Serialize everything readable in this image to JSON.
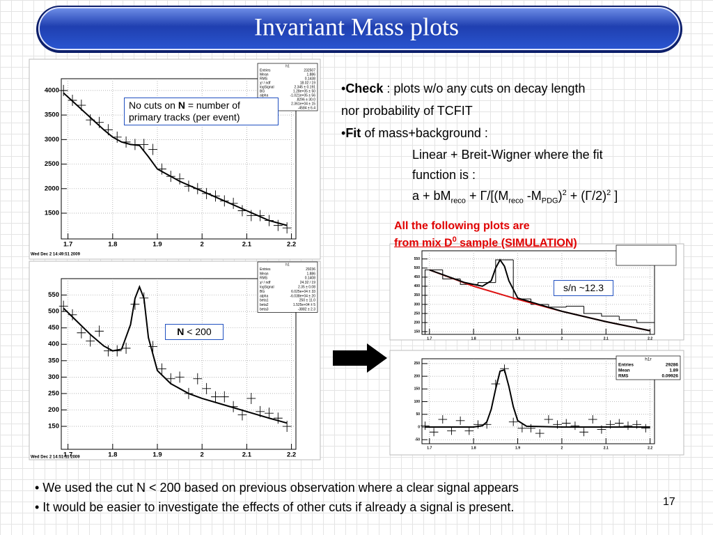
{
  "title": "Invariant Mass plots",
  "check": [
    "•",
    "Check",
    " : plots w/o any cuts on decay length"
  ],
  "check_cont": "nor probability of TCFIT",
  "fit": [
    "•",
    "Fit",
    " of mass+background :"
  ],
  "fit_desc": [
    "Linear + Breit-Wigner where the fit",
    "function is :"
  ],
  "formula": [
    "a + bM",
    "reco",
    " + Γ/[(M",
    "reco",
    " -M",
    "PDG",
    ")",
    "2",
    " + (Γ/2)",
    "2",
    " ]"
  ],
  "sample_note": [
    "All the following plots are",
    "from mix D",
    "0",
    " sample (SIMULATION)"
  ],
  "bottom": [
    "• We used the cut N < 200 based on previous observation where a clear signal appears",
    "• It would be easier to investigate the effects of other cuts if already a signal is present."
  ],
  "page_number": "17",
  "chart_data": [
    {
      "type": "scatter",
      "annotation": [
        "No cuts on ",
        "N",
        " = number of primary tracks (per event)"
      ],
      "footer": "Wed Dec  2 14:49:51 2009",
      "xlim": [
        1.685,
        2.21
      ],
      "xticks": [
        1.7,
        1.8,
        1.9,
        2,
        2.1,
        2.2
      ],
      "ylim": [
        975,
        4240
      ],
      "yticks": [
        1500,
        2000,
        2500,
        3000,
        3500,
        4000
      ],
      "grid": true,
      "stats": {
        "title": "h1",
        "rows": [
          [
            "Entries",
            "232507"
          ],
          [
            "Mean",
            "1.886"
          ],
          [
            "RMS",
            "0.1438"
          ],
          [
            "χ² / ndf",
            "18.02 / 19"
          ],
          [
            "logSignal",
            "2.345 ± 0.191"
          ],
          [
            "BG",
            "1.28e+05 ± 50"
          ],
          [
            "alpha",
            "-1.021e+05 ± 56"
          ],
          [
            "",
            ".8296 ± 30.0"
          ],
          [
            "",
            "2.361e+04 ± 15"
          ],
          [
            "",
            "-4584 ± 6.4"
          ]
        ]
      },
      "series": [
        {
          "style": "cross",
          "color": "#000000",
          "x": [
            1.69,
            1.71,
            1.73,
            1.75,
            1.77,
            1.79,
            1.81,
            1.83,
            1.85,
            1.87,
            1.89,
            1.91,
            1.93,
            1.95,
            1.97,
            1.99,
            2.01,
            2.03,
            2.05,
            2.07,
            2.09,
            2.11,
            2.13,
            2.15,
            2.17,
            2.19
          ],
          "values": [
            4000,
            3800,
            3700,
            3400,
            3350,
            3200,
            3050,
            2950,
            2900,
            2900,
            2800,
            2400,
            2250,
            2200,
            2050,
            2000,
            1900,
            1850,
            1750,
            1700,
            1550,
            1450,
            1450,
            1350,
            1250,
            1200
          ]
        },
        {
          "style": "line",
          "color": "#000000",
          "x": [
            1.69,
            1.72,
            1.75,
            1.78,
            1.8,
            1.82,
            1.84,
            1.86,
            1.88,
            1.9,
            1.95,
            2.0,
            2.05,
            2.1,
            2.15,
            2.19
          ],
          "values": [
            3950,
            3700,
            3450,
            3200,
            3050,
            2950,
            2900,
            2880,
            2650,
            2400,
            2150,
            1950,
            1750,
            1550,
            1350,
            1250
          ]
        }
      ]
    },
    {
      "type": "scatter",
      "annotation": [
        "N",
        " < 200"
      ],
      "footer": "Wed Dec  2 14:51:11 2009",
      "xlim": [
        1.685,
        2.21
      ],
      "xticks": [
        1.7,
        1.8,
        1.9,
        2,
        2.1,
        2.2
      ],
      "ylim": [
        80,
        600
      ],
      "yticks": [
        150,
        200,
        250,
        300,
        350,
        400,
        450,
        500,
        550
      ],
      "grid": true,
      "stats": {
        "title": "h1",
        "rows": [
          [
            "Entries",
            "29236"
          ],
          [
            "Mean",
            "1.886"
          ],
          [
            "RMS",
            "0.1408"
          ],
          [
            "χ² / ndf",
            "24.32 / 19"
          ],
          [
            "logSignal",
            "2.35 ± 0.08"
          ],
          [
            "BG",
            "6.025e+04 ± 33"
          ],
          [
            "alpha",
            "-6.038e+04 ± 20"
          ],
          [
            "beta1",
            "250 ± 11.0"
          ],
          [
            "beta2",
            "1.525e+04 ± 5"
          ],
          [
            "beta3",
            "-3882 ± 2.3"
          ]
        ]
      },
      "series": [
        {
          "style": "cross",
          "color": "#000000",
          "x": [
            1.69,
            1.71,
            1.73,
            1.75,
            1.77,
            1.79,
            1.81,
            1.83,
            1.85,
            1.87,
            1.89,
            1.91,
            1.93,
            1.95,
            1.97,
            1.99,
            2.01,
            2.03,
            2.05,
            2.07,
            2.09,
            2.11,
            2.13,
            2.15,
            2.17,
            2.19
          ],
          "values": [
            516,
            490,
            435,
            410,
            440,
            380,
            380,
            388,
            522,
            541,
            393,
            325,
            295,
            300,
            250,
            295,
            265,
            240,
            240,
            210,
            185,
            235,
            195,
            190,
            175,
            150
          ]
        },
        {
          "style": "line",
          "color": "#000000",
          "x": [
            1.69,
            1.72,
            1.75,
            1.78,
            1.8,
            1.82,
            1.84,
            1.85,
            1.86,
            1.87,
            1.88,
            1.9,
            1.93,
            1.97,
            2.0,
            2.05,
            2.1,
            2.15,
            2.19
          ],
          "values": [
            510,
            470,
            430,
            395,
            380,
            385,
            460,
            540,
            575,
            540,
            420,
            320,
            280,
            250,
            235,
            215,
            195,
            175,
            160
          ]
        }
      ]
    },
    {
      "type": "histogram",
      "annotation": [
        "s/n ~12.3"
      ],
      "xlim": [
        1.683,
        2.21
      ],
      "xticks": [
        1.7,
        1.8,
        1.9,
        2,
        2.1,
        2.2
      ],
      "ylim": [
        135,
        595
      ],
      "yticks": [
        150,
        200,
        250,
        300,
        350,
        400,
        450,
        500,
        550
      ],
      "grid": true,
      "series": [
        {
          "style": "step",
          "color": "#000000",
          "bins": [
            1.69,
            1.73,
            1.77,
            1.81,
            1.85,
            1.89,
            1.93,
            1.97,
            2.01,
            2.05,
            2.09,
            2.13,
            2.17,
            2.21
          ],
          "values": [
            490,
            440,
            410,
            420,
            545,
            330,
            300,
            285,
            290,
            250,
            235,
            215,
            200
          ]
        },
        {
          "style": "line",
          "color": "#dd1111",
          "x": [
            1.7,
            1.8,
            1.9,
            2.0,
            2.1,
            2.2
          ],
          "values": [
            490,
            400,
            328,
            262,
            205,
            155
          ]
        },
        {
          "style": "line",
          "color": "#000000",
          "x": [
            1.7,
            1.78,
            1.82,
            1.84,
            1.85,
            1.86,
            1.87,
            1.88,
            1.9,
            2.0,
            2.1,
            2.2
          ],
          "values": [
            490,
            420,
            400,
            430,
            500,
            545,
            510,
            430,
            335,
            262,
            205,
            155
          ]
        }
      ]
    },
    {
      "type": "scatter",
      "xlim": [
        1.683,
        2.21
      ],
      "xticks": [
        1.7,
        1.8,
        1.9,
        2,
        2.1,
        2.2
      ],
      "ylim": [
        -66,
        269
      ],
      "yticks": [
        -50,
        0,
        50,
        100,
        150,
        200,
        250
      ],
      "grid": true,
      "stats": {
        "title": "h1r",
        "rows": [
          [
            "Entries",
            "29286"
          ],
          [
            "Mean",
            "1.89"
          ],
          [
            "RMS",
            "0.09926"
          ]
        ]
      },
      "series": [
        {
          "style": "cross",
          "color": "#000000",
          "x": [
            1.69,
            1.71,
            1.73,
            1.75,
            1.77,
            1.79,
            1.81,
            1.83,
            1.85,
            1.87,
            1.89,
            1.91,
            1.93,
            1.95,
            1.97,
            1.99,
            2.01,
            2.03,
            2.05,
            2.07,
            2.09,
            2.11,
            2.13,
            2.15,
            2.17,
            2.19
          ],
          "values": [
            5,
            -20,
            30,
            -15,
            25,
            -15,
            10,
            10,
            170,
            230,
            20,
            -5,
            -5,
            -25,
            30,
            10,
            15,
            5,
            -20,
            30,
            -10,
            10,
            15,
            5,
            10,
            -5
          ]
        },
        {
          "style": "line",
          "color": "#000000",
          "x": [
            1.69,
            1.8,
            1.82,
            1.83,
            1.84,
            1.85,
            1.86,
            1.87,
            1.88,
            1.89,
            1.9,
            1.92,
            2.0,
            2.2
          ],
          "values": [
            0,
            0,
            5,
            20,
            70,
            150,
            220,
            225,
            160,
            80,
            25,
            3,
            0,
            0
          ]
        }
      ]
    }
  ]
}
